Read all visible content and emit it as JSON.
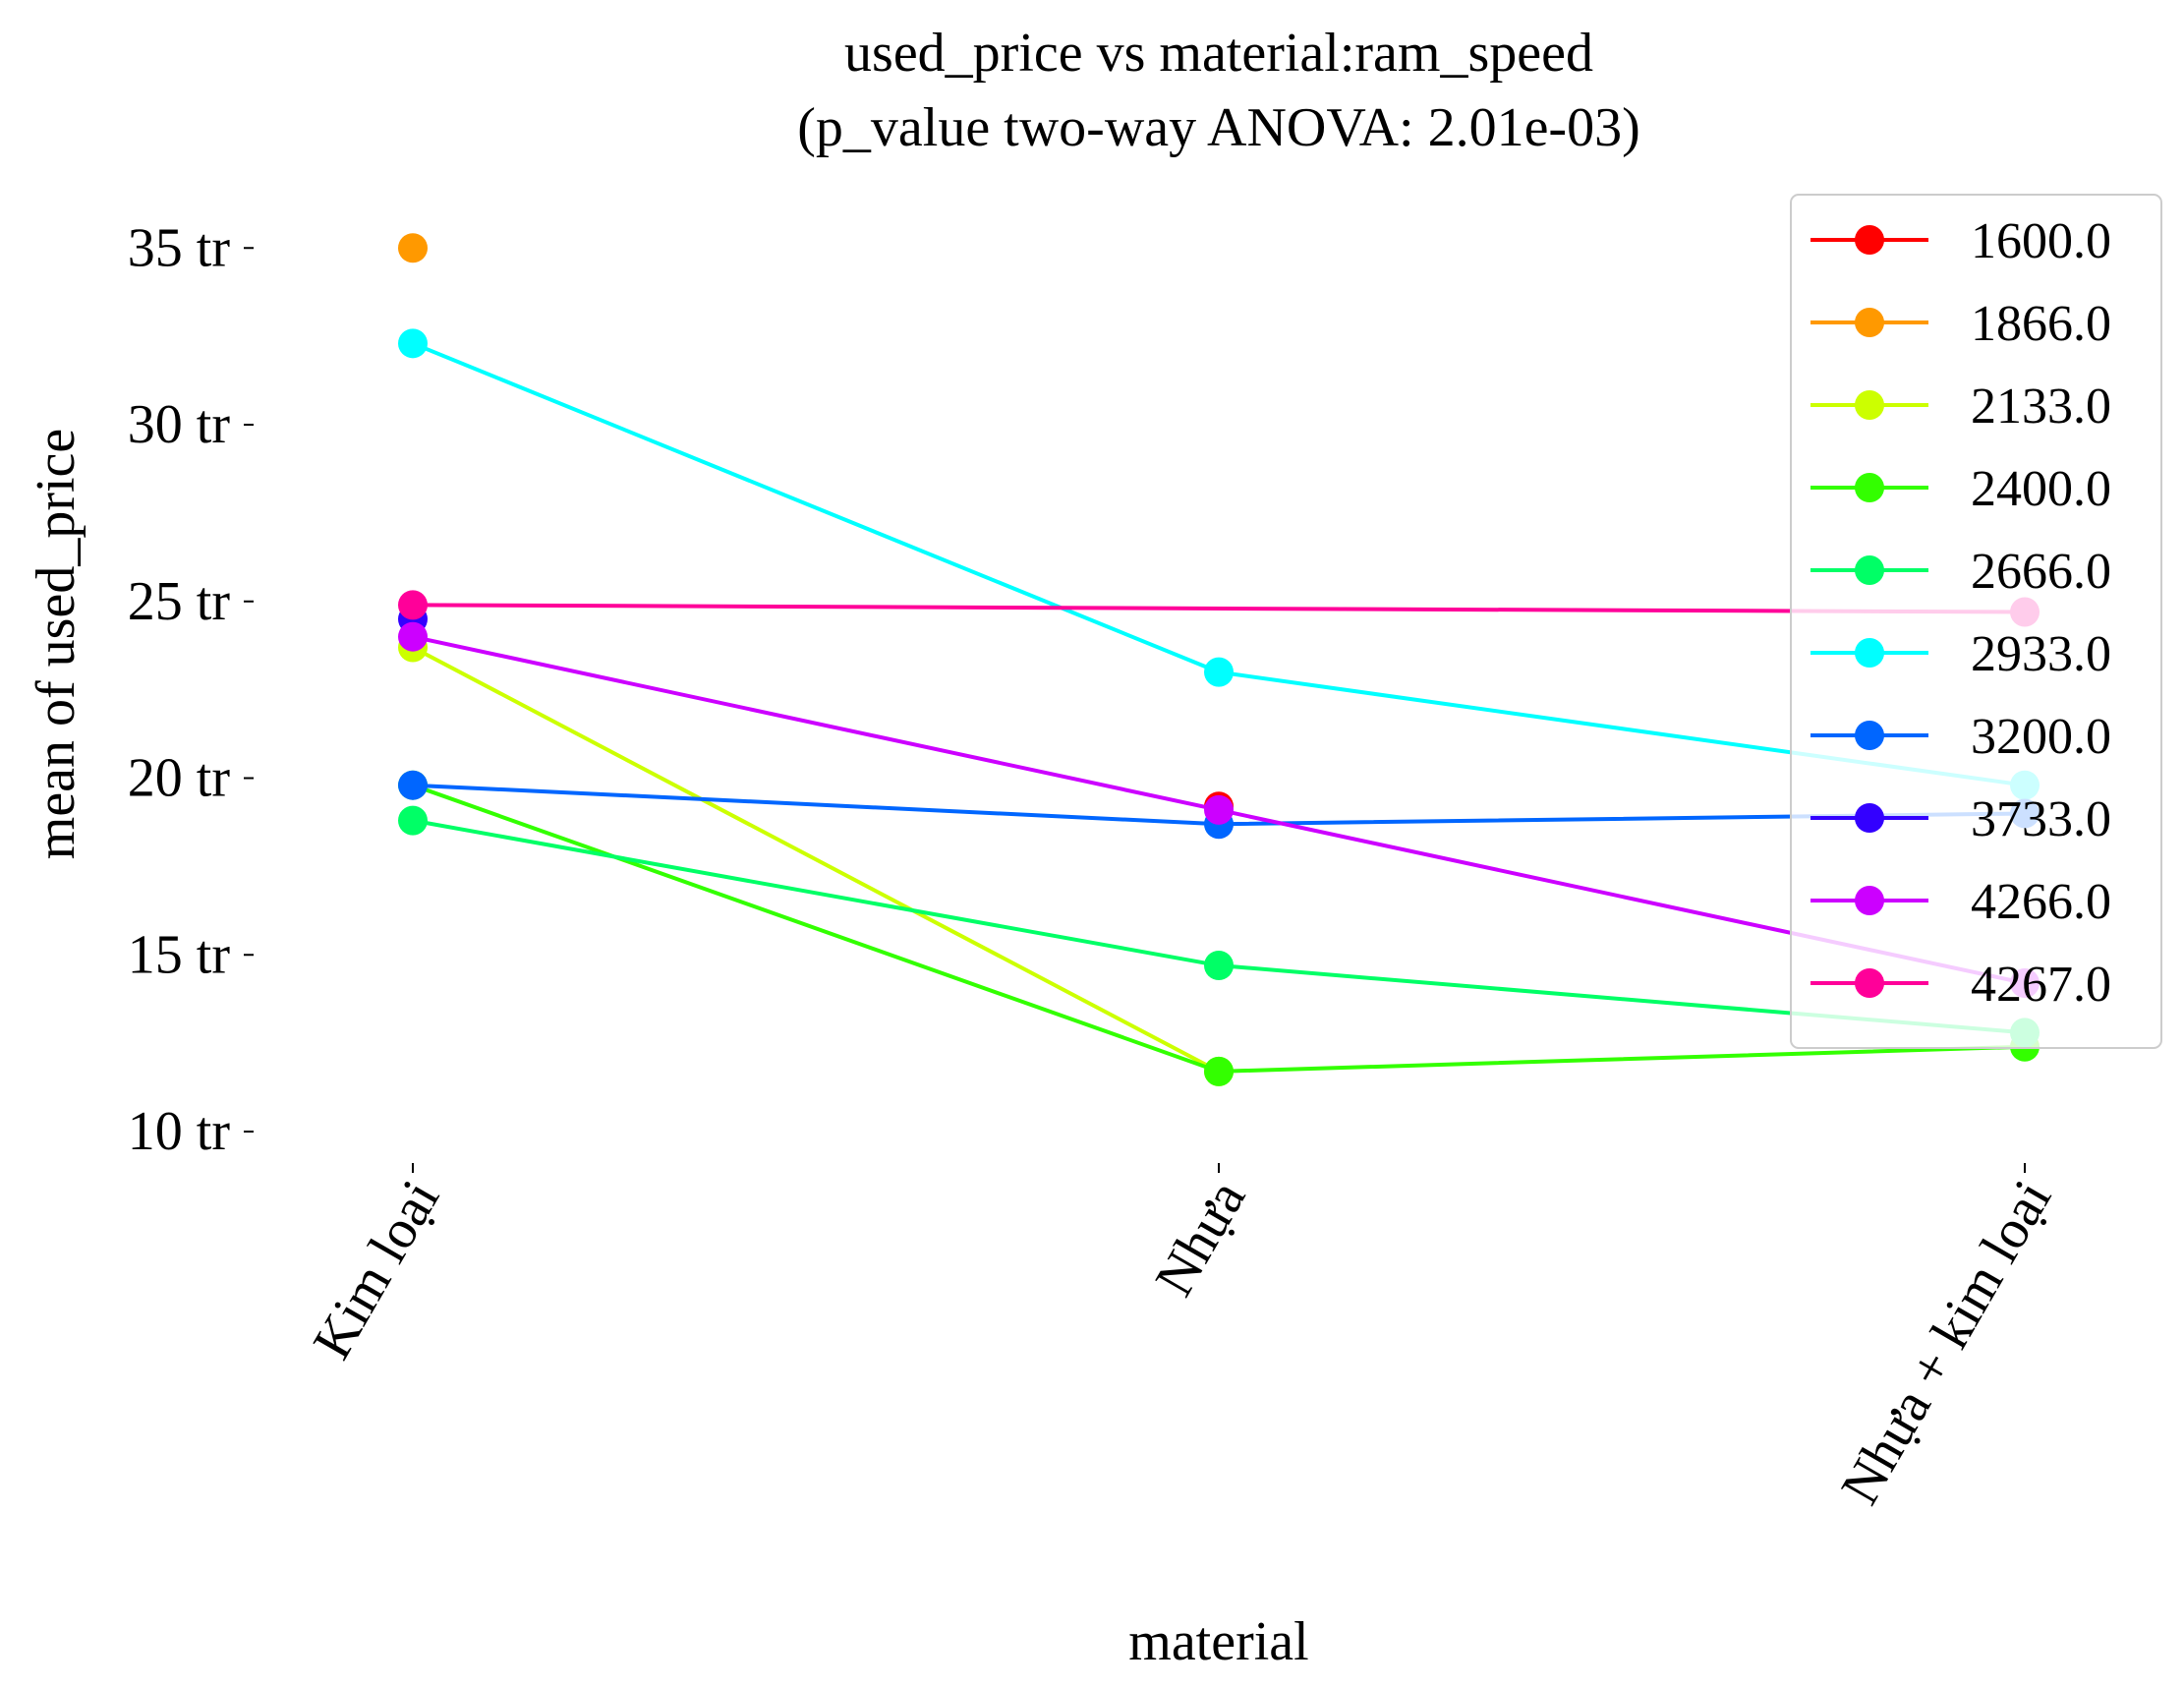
{
  "chart_data": {
    "type": "line",
    "title_line1": "used_price vs material:ram_speed",
    "title_line2": "(p_value two-way ANOVA: 2.01e-03)",
    "xlabel": "material",
    "ylabel": "mean of used_price",
    "categories": [
      "Kim loại",
      "Nhựa",
      "Nhựa + kim loại"
    ],
    "y_ticks": [
      {
        "value": 10,
        "label": "10 tr"
      },
      {
        "value": 15,
        "label": "15 tr"
      },
      {
        "value": 20,
        "label": "20 tr"
      },
      {
        "value": 25,
        "label": "25 tr"
      },
      {
        "value": 30,
        "label": "30 tr"
      },
      {
        "value": 35,
        "label": "35 tr"
      }
    ],
    "ylim": [
      9.5,
      36
    ],
    "grid": false,
    "legend_position": "top-right",
    "series": [
      {
        "name": "1600.0",
        "color": "#ff0000",
        "values": [
          null,
          19.2,
          null
        ]
      },
      {
        "name": "1866.0",
        "color": "#ff9900",
        "values": [
          35.0,
          null,
          null
        ]
      },
      {
        "name": "2133.0",
        "color": "#ccff00",
        "values": [
          23.7,
          11.7,
          null
        ]
      },
      {
        "name": "2400.0",
        "color": "#33ff00",
        "values": [
          19.8,
          11.7,
          12.4
        ]
      },
      {
        "name": "2666.0",
        "color": "#00ff66",
        "values": [
          18.8,
          14.7,
          12.8
        ]
      },
      {
        "name": "2933.0",
        "color": "#00ffff",
        "values": [
          32.3,
          23.0,
          19.8
        ]
      },
      {
        "name": "3200.0",
        "color": "#0066ff",
        "values": [
          19.8,
          18.7,
          19.0
        ]
      },
      {
        "name": "3733.0",
        "color": "#3300ff",
        "values": [
          24.5,
          null,
          null
        ]
      },
      {
        "name": "4266.0",
        "color": "#cc00ff",
        "values": [
          24.0,
          19.1,
          14.2
        ]
      },
      {
        "name": "4267.0",
        "color": "#ff0099",
        "values": [
          24.9,
          null,
          24.7
        ]
      }
    ]
  }
}
